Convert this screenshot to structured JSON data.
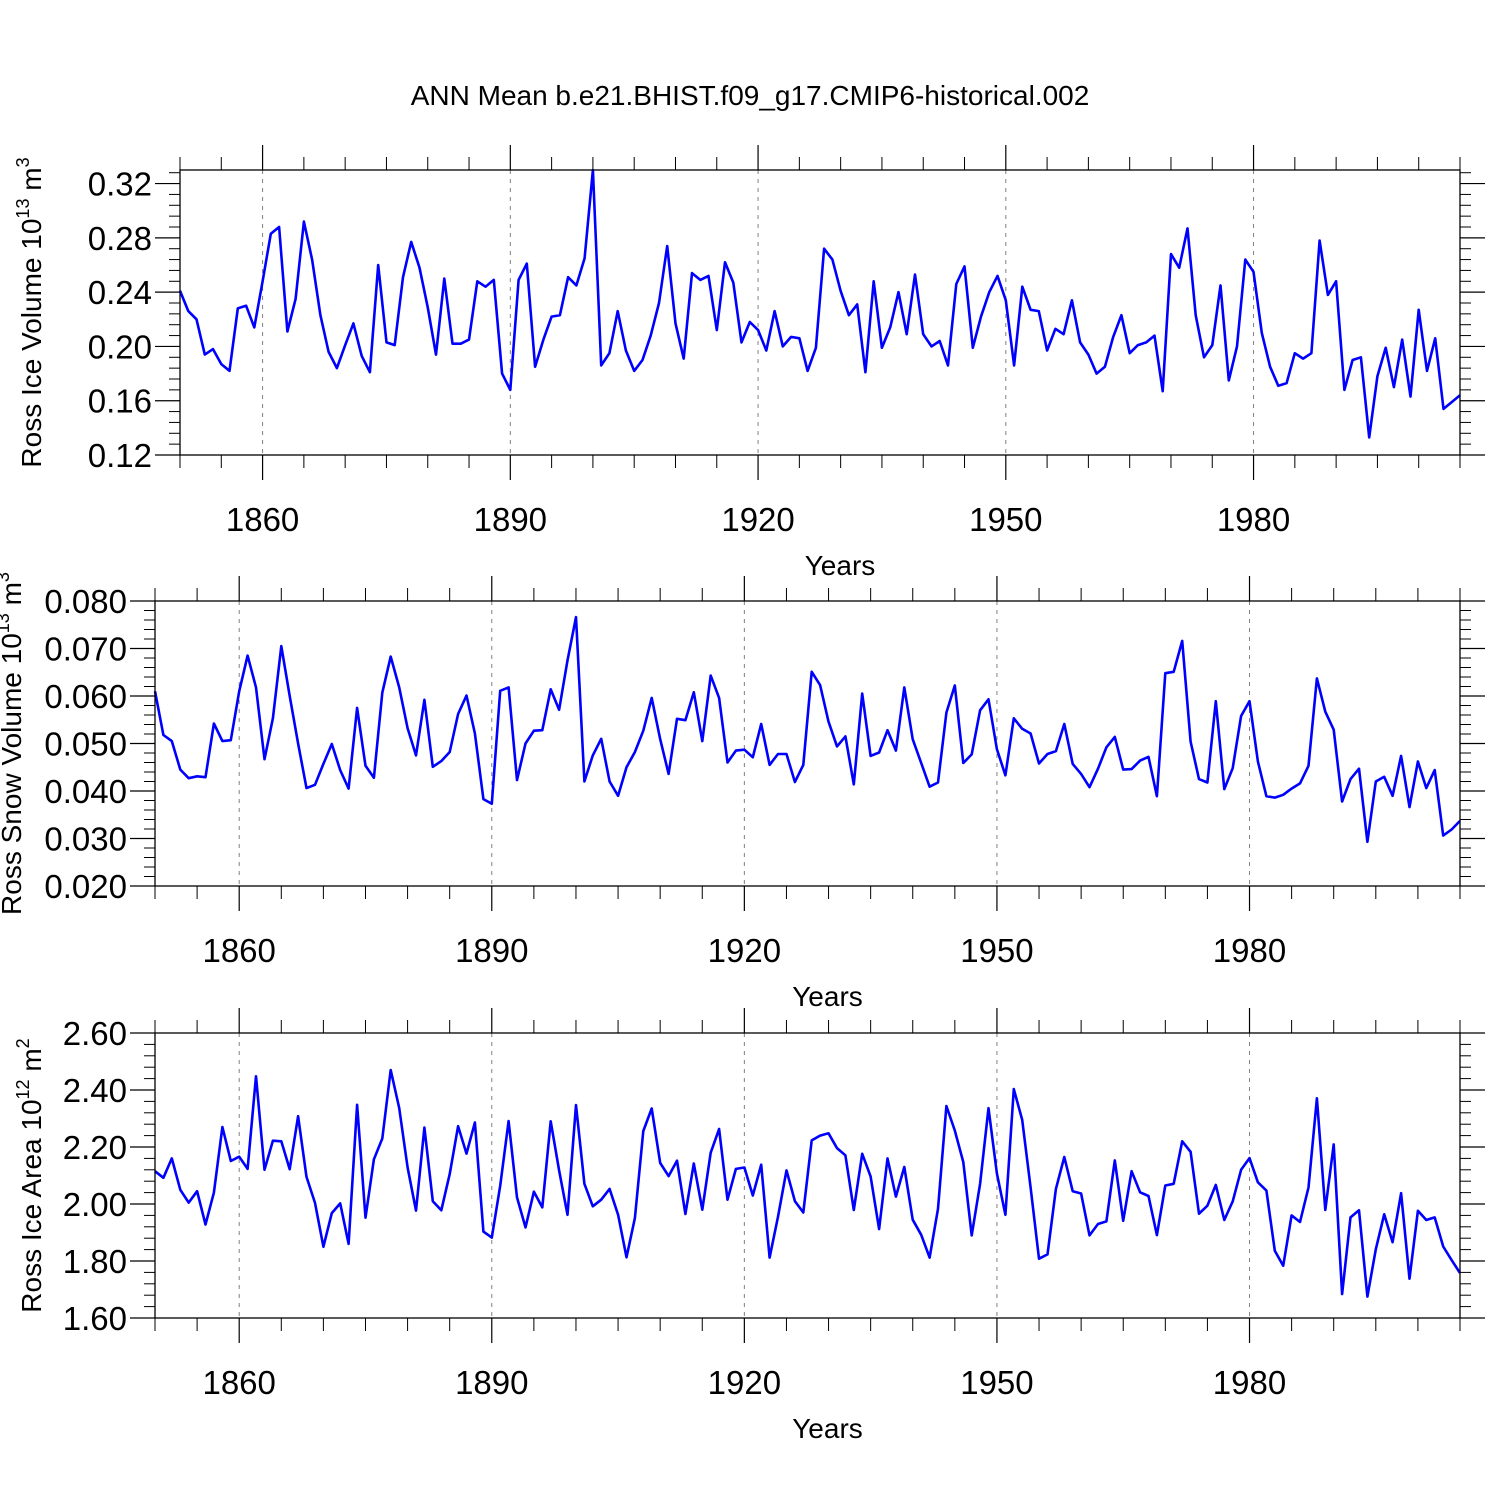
{
  "title": "ANN Mean b.e21.BHIST.f09_g17.CMIP6-historical.002",
  "colors": {
    "line": "#0000ff",
    "axis": "#000000",
    "grid": "#808080"
  },
  "chart_data": [
    {
      "type": "line",
      "ylabel": "Ross Ice Volume 10",
      "ylabel_exp": "13",
      "ylabel_unit": " m",
      "ylabel_unit_exp": "3",
      "xlabel": "Years",
      "xlim": [
        1850,
        2005
      ],
      "ylim": [
        0.12,
        0.33
      ],
      "xticks": [
        1860,
        1890,
        1920,
        1950,
        1980
      ],
      "xtick_labels": [
        "1860",
        "1890",
        "1920",
        "1950",
        "1980"
      ],
      "yticks": [
        0.12,
        0.16,
        0.2,
        0.24,
        0.28,
        0.32
      ],
      "ytick_labels": [
        "0.12",
        "0.16",
        "0.20",
        "0.24",
        "0.28",
        "0.32"
      ],
      "grid": "vertical dashed at major x ticks",
      "x_start": 1850,
      "values": [
        0.241,
        0.226,
        0.22,
        0.194,
        0.198,
        0.187,
        0.182,
        0.228,
        0.23,
        0.214,
        0.248,
        0.283,
        0.288,
        0.211,
        0.235,
        0.292,
        0.264,
        0.223,
        0.196,
        0.184,
        0.201,
        0.217,
        0.193,
        0.181,
        0.26,
        0.203,
        0.201,
        0.251,
        0.277,
        0.258,
        0.229,
        0.194,
        0.25,
        0.202,
        0.202,
        0.205,
        0.248,
        0.244,
        0.249,
        0.18,
        0.168,
        0.249,
        0.261,
        0.185,
        0.205,
        0.222,
        0.223,
        0.251,
        0.245,
        0.265,
        0.33,
        0.186,
        0.195,
        0.226,
        0.197,
        0.182,
        0.19,
        0.208,
        0.232,
        0.274,
        0.217,
        0.191,
        0.254,
        0.249,
        0.252,
        0.212,
        0.262,
        0.247,
        0.203,
        0.218,
        0.212,
        0.197,
        0.226,
        0.2,
        0.207,
        0.206,
        0.182,
        0.199,
        0.272,
        0.264,
        0.241,
        0.223,
        0.231,
        0.181,
        0.248,
        0.199,
        0.214,
        0.24,
        0.209,
        0.253,
        0.209,
        0.2,
        0.204,
        0.186,
        0.246,
        0.259,
        0.199,
        0.222,
        0.24,
        0.252,
        0.234,
        0.186,
        0.244,
        0.227,
        0.226,
        0.197,
        0.213,
        0.209,
        0.234,
        0.203,
        0.194,
        0.18,
        0.185,
        0.207,
        0.223,
        0.195,
        0.201,
        0.203,
        0.208,
        0.167,
        0.268,
        0.258,
        0.287,
        0.223,
        0.192,
        0.201,
        0.245,
        0.175,
        0.2,
        0.264,
        0.255,
        0.21,
        0.185,
        0.171,
        0.173,
        0.195,
        0.191,
        0.195,
        0.278,
        0.238,
        0.248,
        0.168,
        0.19,
        0.192,
        0.133,
        0.178,
        0.199,
        0.17,
        0.205,
        0.163,
        0.227,
        0.182,
        0.206,
        0.154,
        0.159,
        0.164
      ]
    },
    {
      "type": "line",
      "ylabel": "Ross Snow Volume 10",
      "ylabel_exp": "13",
      "ylabel_unit": " m",
      "ylabel_unit_exp": "3",
      "xlabel": "Years",
      "xlim": [
        1850,
        2005
      ],
      "ylim": [
        0.02,
        0.08
      ],
      "xticks": [
        1860,
        1890,
        1920,
        1950,
        1980
      ],
      "xtick_labels": [
        "1860",
        "1890",
        "1920",
        "1950",
        "1980"
      ],
      "yticks": [
        0.02,
        0.03,
        0.04,
        0.05,
        0.06,
        0.07,
        0.08
      ],
      "ytick_labels": [
        "0.020",
        "0.030",
        "0.040",
        "0.050",
        "0.060",
        "0.070",
        "0.080"
      ],
      "grid": "vertical dashed at major x ticks",
      "x_start": 1850,
      "values": [
        0.061,
        0.0518,
        0.0505,
        0.0445,
        0.0427,
        0.0431,
        0.0429,
        0.0542,
        0.0505,
        0.0507,
        0.061,
        0.0685,
        0.0618,
        0.0467,
        0.0553,
        0.0705,
        0.06,
        0.05,
        0.0406,
        0.0413,
        0.0457,
        0.0499,
        0.0444,
        0.0405,
        0.0575,
        0.0453,
        0.0428,
        0.0607,
        0.0683,
        0.0618,
        0.0532,
        0.0475,
        0.0592,
        0.0451,
        0.0463,
        0.0482,
        0.0562,
        0.0601,
        0.0521,
        0.0383,
        0.0373,
        0.0611,
        0.0618,
        0.0423,
        0.05,
        0.0527,
        0.0528,
        0.0614,
        0.0571,
        0.0675,
        0.0766,
        0.042,
        0.0475,
        0.051,
        0.042,
        0.039,
        0.045,
        0.0482,
        0.0527,
        0.0596,
        0.0509,
        0.0436,
        0.0552,
        0.0549,
        0.0608,
        0.0505,
        0.0643,
        0.0596,
        0.046,
        0.0485,
        0.0487,
        0.0471,
        0.0541,
        0.0455,
        0.0478,
        0.0478,
        0.0419,
        0.0455,
        0.0651,
        0.0623,
        0.0546,
        0.0494,
        0.0515,
        0.0414,
        0.0605,
        0.0474,
        0.0481,
        0.0528,
        0.0485,
        0.0618,
        0.0509,
        0.0459,
        0.0409,
        0.0418,
        0.0565,
        0.0622,
        0.0459,
        0.0477,
        0.057,
        0.0593,
        0.0488,
        0.0433,
        0.0553,
        0.0531,
        0.0521,
        0.0458,
        0.0478,
        0.0484,
        0.0541,
        0.0457,
        0.0436,
        0.0408,
        0.0447,
        0.0492,
        0.0514,
        0.0445,
        0.0446,
        0.0464,
        0.0472,
        0.0389,
        0.0648,
        0.0651,
        0.0716,
        0.0504,
        0.0425,
        0.0418,
        0.0589,
        0.0404,
        0.0448,
        0.0558,
        0.0589,
        0.0462,
        0.0389,
        0.0386,
        0.0392,
        0.0405,
        0.0416,
        0.0453,
        0.0637,
        0.0567,
        0.0529,
        0.0378,
        0.0425,
        0.0447,
        0.0293,
        0.042,
        0.043,
        0.039,
        0.0474,
        0.0366,
        0.0462,
        0.0406,
        0.0444,
        0.0306,
        0.0319,
        0.0337
      ]
    },
    {
      "type": "line",
      "ylabel": "Ross Ice Area 10",
      "ylabel_exp": "12",
      "ylabel_unit": " m",
      "ylabel_unit_exp": "2",
      "xlabel": "Years",
      "xlim": [
        1850,
        2005
      ],
      "ylim": [
        1.6,
        2.6
      ],
      "xticks": [
        1860,
        1890,
        1920,
        1950,
        1980
      ],
      "xtick_labels": [
        "1860",
        "1890",
        "1920",
        "1950",
        "1980"
      ],
      "yticks": [
        1.6,
        1.8,
        2.0,
        2.2,
        2.4,
        2.6
      ],
      "ytick_labels": [
        "1.60",
        "1.80",
        "2.00",
        "2.20",
        "2.40",
        "2.60"
      ],
      "grid": "vertical dashed at major x ticks",
      "x_start": 1850,
      "values": [
        2.115,
        2.092,
        2.16,
        2.05,
        2.005,
        2.045,
        1.928,
        2.04,
        2.27,
        2.151,
        2.166,
        2.123,
        2.448,
        2.12,
        2.222,
        2.22,
        2.122,
        2.308,
        2.095,
        2.004,
        1.85,
        1.968,
        2.002,
        1.86,
        2.348,
        1.952,
        2.157,
        2.23,
        2.47,
        2.337,
        2.128,
        1.977,
        2.268,
        2.01,
        1.978,
        2.105,
        2.273,
        2.177,
        2.286,
        1.903,
        1.882,
        2.064,
        2.291,
        2.023,
        1.918,
        2.043,
        1.988,
        2.29,
        2.118,
        1.962,
        2.347,
        2.071,
        1.992,
        2.015,
        2.053,
        1.962,
        1.813,
        1.951,
        2.256,
        2.335,
        2.144,
        2.098,
        2.152,
        1.965,
        2.142,
        1.98,
        2.18,
        2.263,
        2.015,
        2.123,
        2.128,
        2.03,
        2.138,
        1.812,
        1.955,
        2.118,
        2.01,
        1.97,
        2.223,
        2.24,
        2.248,
        2.196,
        2.171,
        1.979,
        2.176,
        2.097,
        1.912,
        2.16,
        2.026,
        2.13,
        1.945,
        1.892,
        1.812,
        1.983,
        2.344,
        2.258,
        2.147,
        1.89,
        2.071,
        2.336,
        2.107,
        1.962,
        2.403,
        2.295,
        2.058,
        1.808,
        1.823,
        2.053,
        2.165,
        2.045,
        2.037,
        1.89,
        1.93,
        1.939,
        2.153,
        1.941,
        2.115,
        2.041,
        2.028,
        1.891,
        2.065,
        2.071,
        2.22,
        2.183,
        1.966,
        1.994,
        2.067,
        1.944,
        2.009,
        2.12,
        2.161,
        2.076,
        2.047,
        1.836,
        1.783,
        1.96,
        1.937,
        2.058,
        2.371,
        1.979,
        2.209,
        1.684,
        1.953,
        1.978,
        1.675,
        1.841,
        1.964,
        1.866,
        2.038,
        1.738,
        1.976,
        1.944,
        1.953,
        1.851,
        1.803,
        1.758
      ]
    }
  ]
}
